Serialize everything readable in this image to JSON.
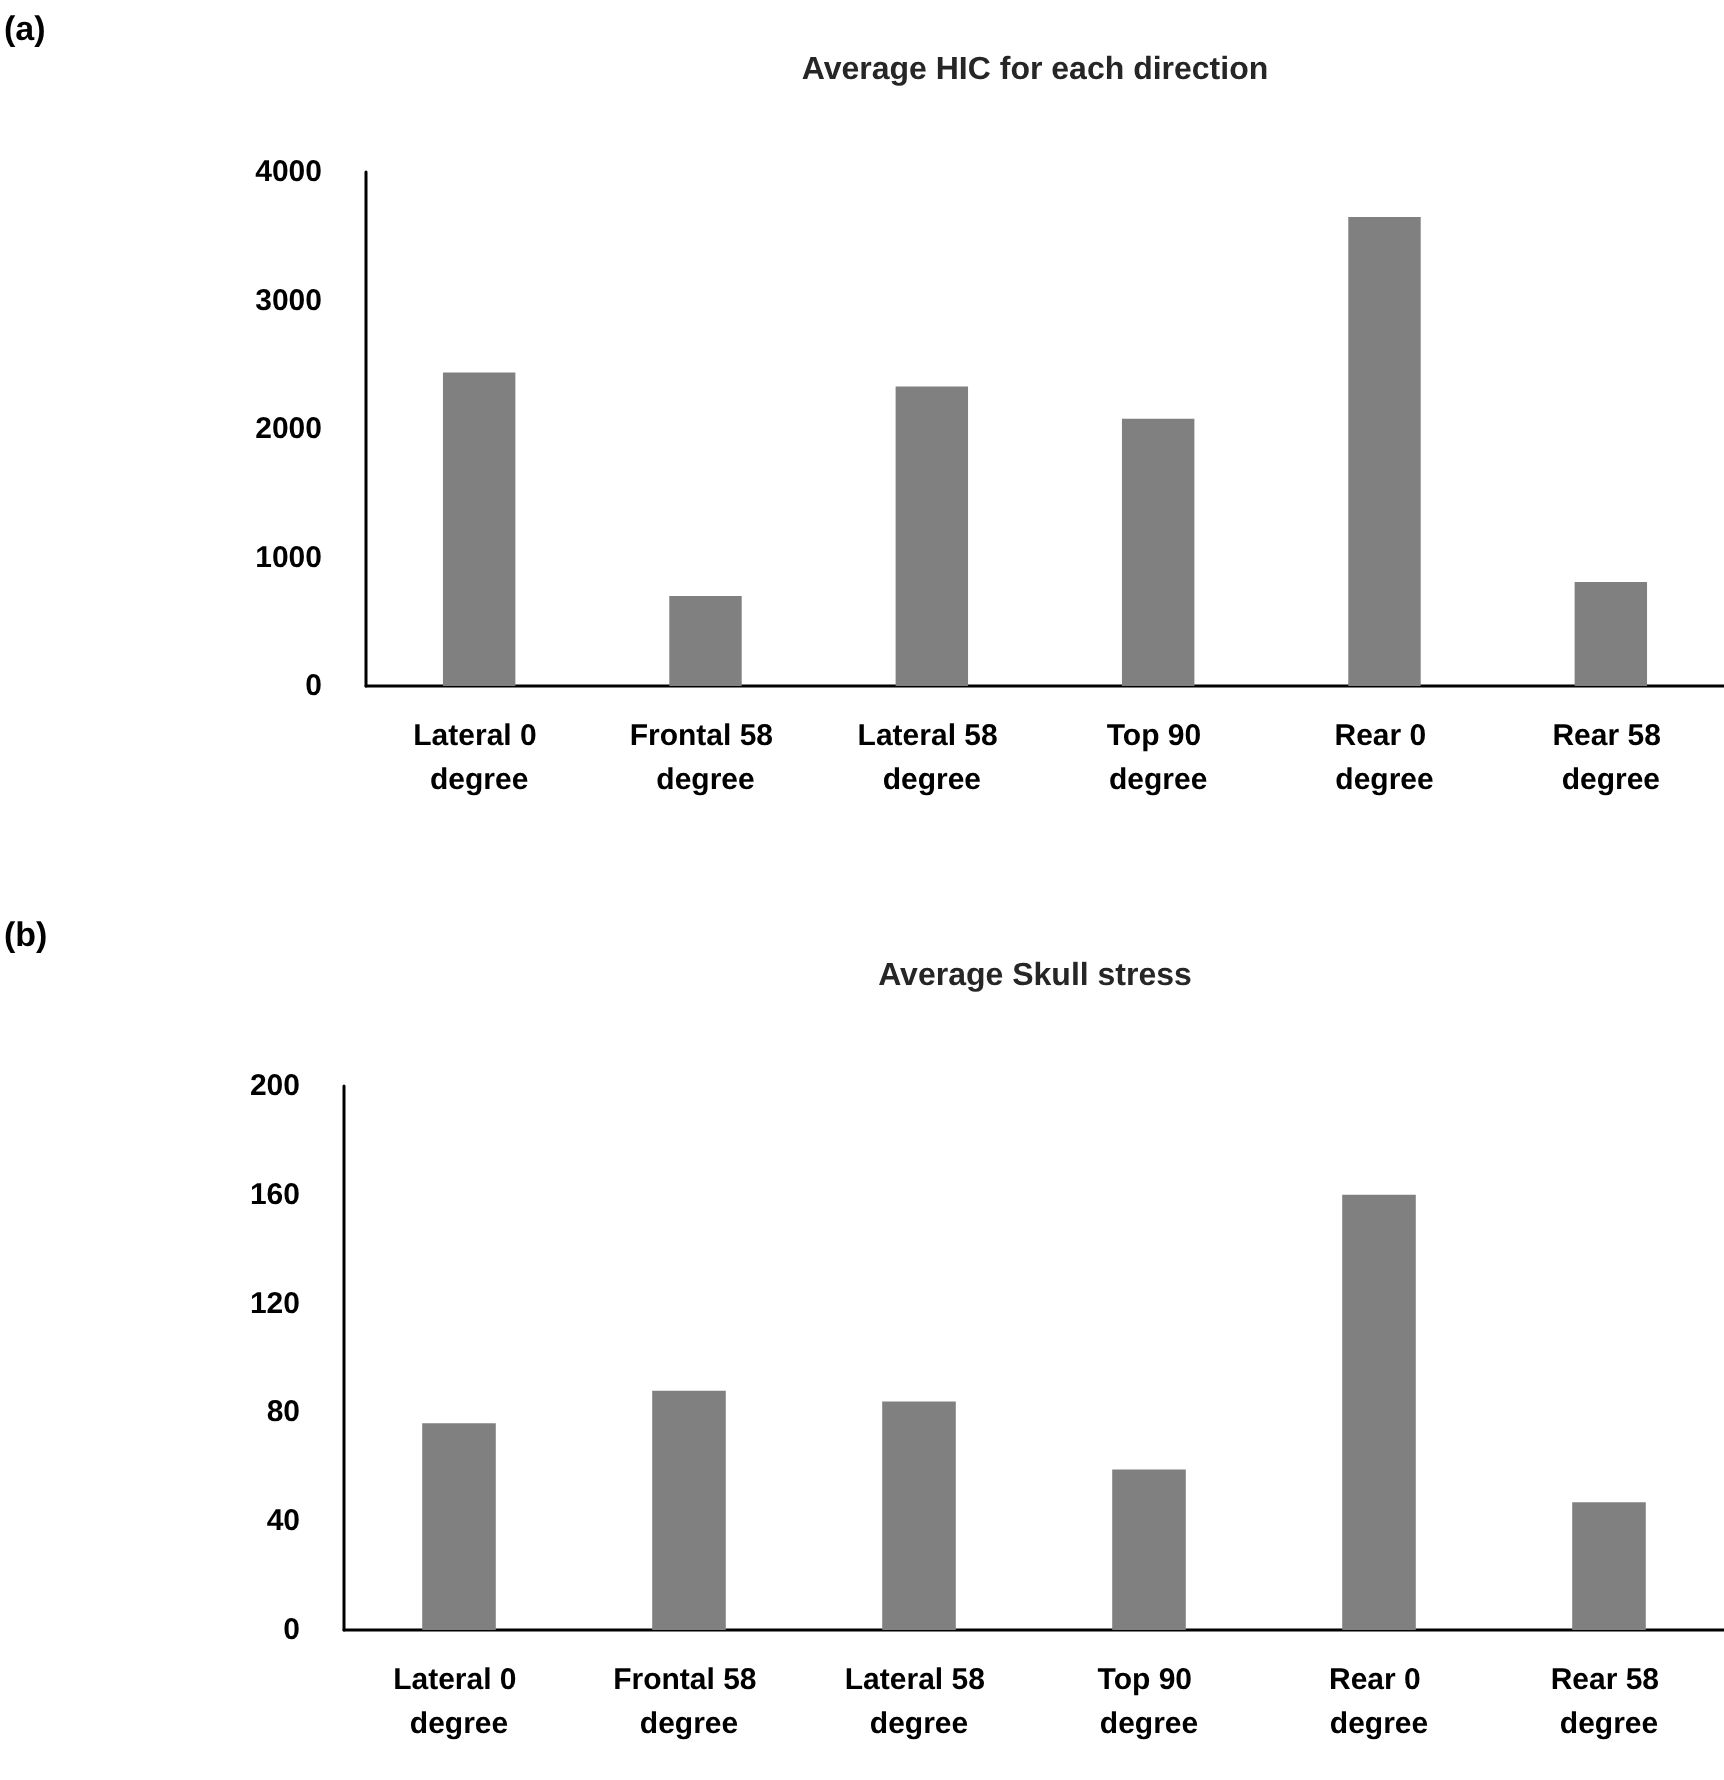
{
  "chart_data": [
    {
      "type": "bar",
      "title": "Average HIC for each direction",
      "annotations": [
        "(a)"
      ],
      "categories": [
        "Lateral 0 degree",
        "Frontal 58 degree",
        "Lateral 58 degree",
        "Top 90 degree",
        "Rear 0 degree",
        "Rear 58 degree"
      ],
      "values": [
        2440,
        700,
        2330,
        2080,
        3650,
        810
      ],
      "color": "#808080",
      "ylim": [
        0,
        4000
      ],
      "yticks": [
        0,
        1000,
        2000,
        3000,
        4000
      ],
      "grid": false
    },
    {
      "type": "bar",
      "title": "Average Skull stress",
      "annotations": [
        "(b)"
      ],
      "categories": [
        "Lateral 0 degree",
        "Frontal 58 degree",
        "Lateral 58 degree",
        "Top 90 degree",
        "Rear 0 degree",
        "Rear 58 degree"
      ],
      "values": [
        76,
        88,
        84,
        59,
        160,
        47
      ],
      "color": "#808080",
      "ylim": [
        0,
        200
      ],
      "yticks": [
        0,
        40,
        80,
        120,
        160,
        200
      ],
      "grid": false
    }
  ]
}
